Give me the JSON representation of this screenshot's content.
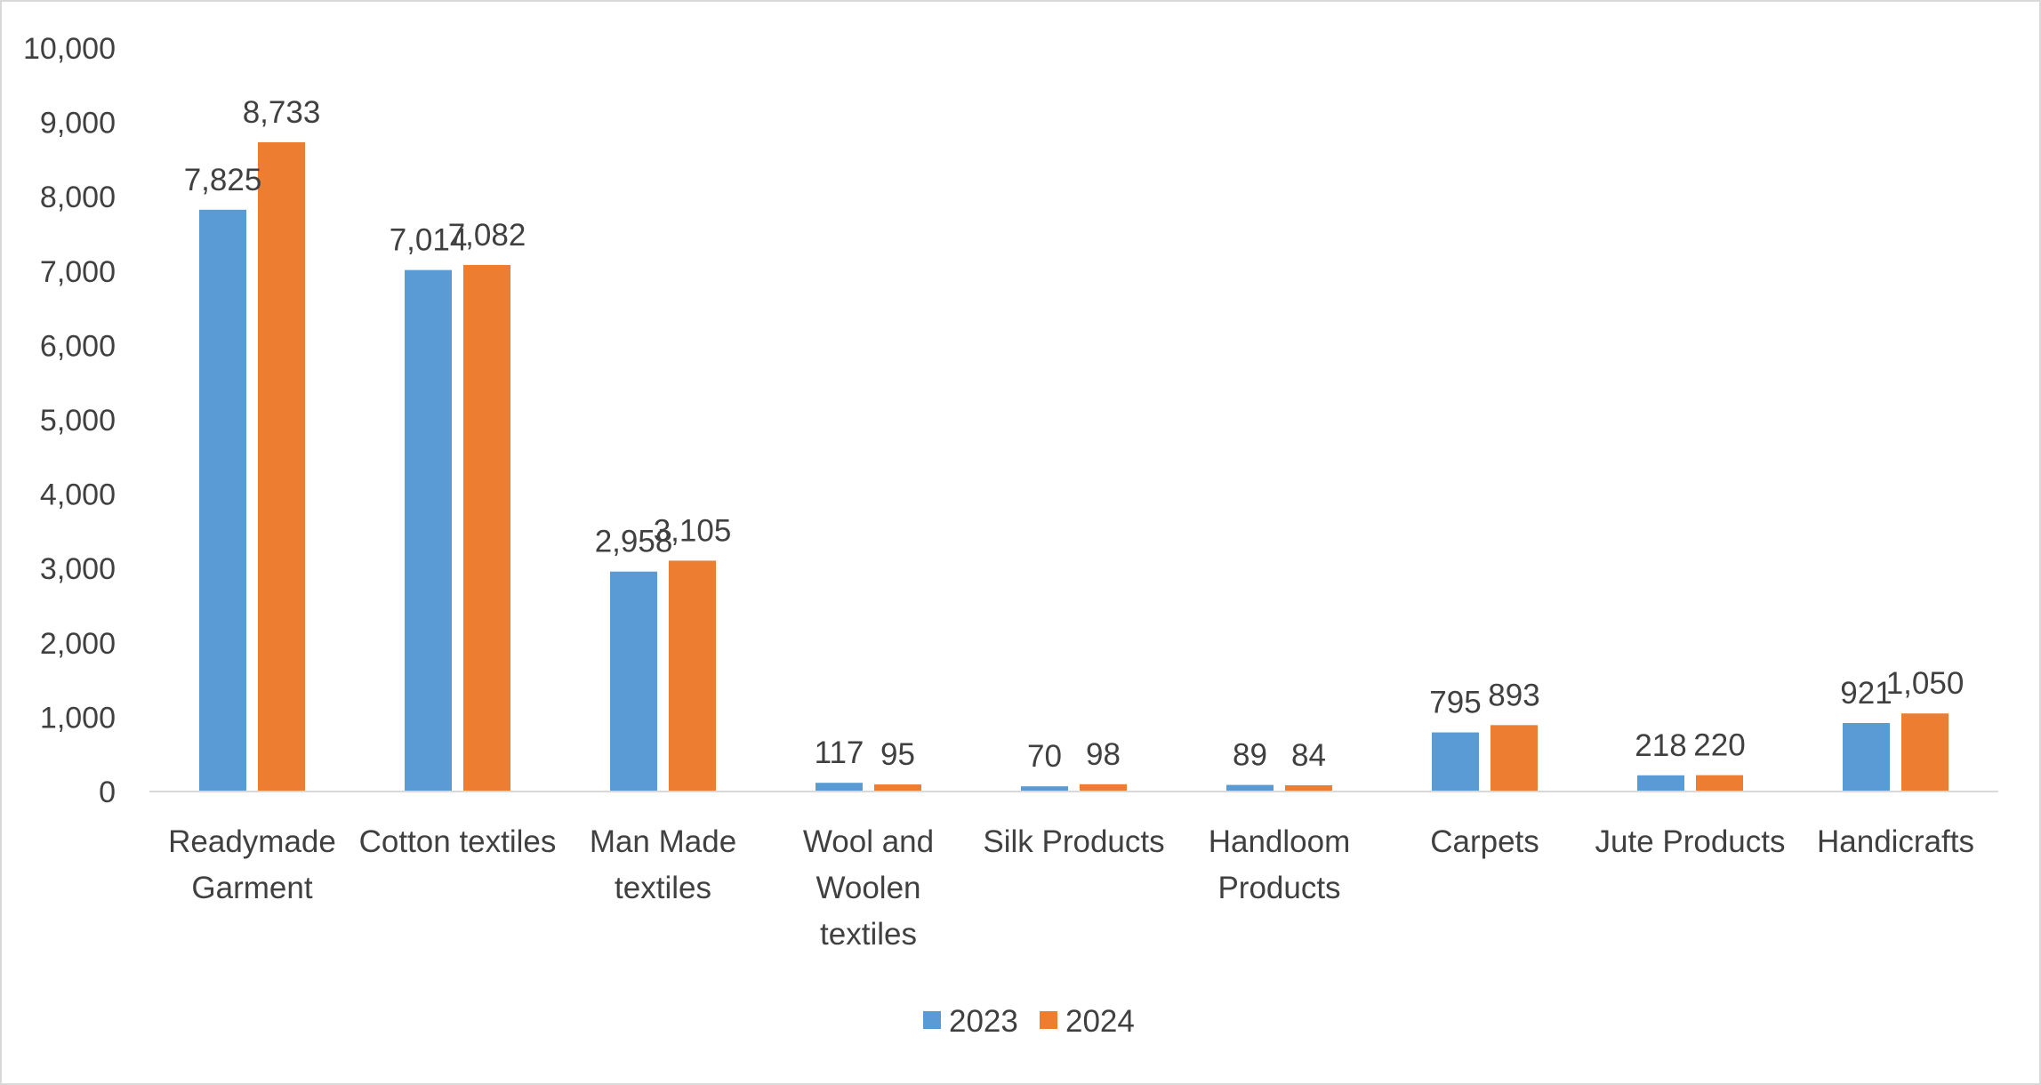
{
  "chart_data": {
    "type": "bar",
    "categories": [
      [
        "Readymade",
        "Garment"
      ],
      [
        "Cotton textiles"
      ],
      [
        "Man Made",
        "textiles"
      ],
      [
        "Wool and",
        "Woolen",
        "textiles"
      ],
      [
        "Silk Products"
      ],
      [
        "Handloom",
        "Products"
      ],
      [
        "Carpets"
      ],
      [
        "Jute Products"
      ],
      [
        "Handicrafts"
      ]
    ],
    "series": [
      {
        "name": "2023",
        "color": "#5b9bd5",
        "values": [
          7825,
          7014,
          2958,
          117,
          70,
          89,
          795,
          218,
          921
        ],
        "labels": [
          "7,825",
          "7,014",
          "2,958",
          "117",
          "70",
          "89",
          "795",
          "218",
          "921"
        ]
      },
      {
        "name": "2024",
        "color": "#ed7d31",
        "values": [
          8733,
          7082,
          3105,
          95,
          98,
          84,
          893,
          220,
          1050
        ],
        "labels": [
          "8,733",
          "7,082",
          "3,105",
          "95",
          "98",
          "84",
          "893",
          "220",
          "1,050"
        ]
      }
    ],
    "yticks": [
      0,
      1000,
      2000,
      3000,
      4000,
      5000,
      6000,
      7000,
      8000,
      9000,
      10000
    ],
    "ytick_labels": [
      "0",
      "1,000",
      "2,000",
      "3,000",
      "4,000",
      "5,000",
      "6,000",
      "7,000",
      "8,000",
      "9,000",
      "10,000"
    ],
    "ylim": [
      0,
      10000
    ],
    "title": "",
    "xlabel": "",
    "ylabel": "",
    "grid": false,
    "legend_position": "bottom"
  }
}
